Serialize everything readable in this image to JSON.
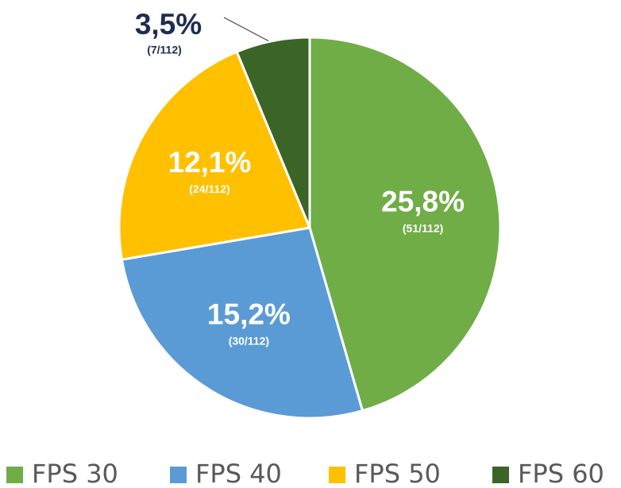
{
  "chart_data": {
    "type": "pie",
    "categories": [
      "FPS 30",
      "FPS 40",
      "FPS 50",
      "FPS 60"
    ],
    "values": [
      51,
      30,
      24,
      7
    ],
    "value_labels": [
      "(51/112)",
      "(30/112)",
      "(24/112)",
      "(7/112)"
    ],
    "percent_labels": [
      "25,8%",
      "15,2%",
      "12,1%",
      "3,5%"
    ],
    "colors": [
      "#70ad47",
      "#5b9bd5",
      "#ffc000",
      "#3b6527"
    ],
    "legend": "bottom"
  }
}
